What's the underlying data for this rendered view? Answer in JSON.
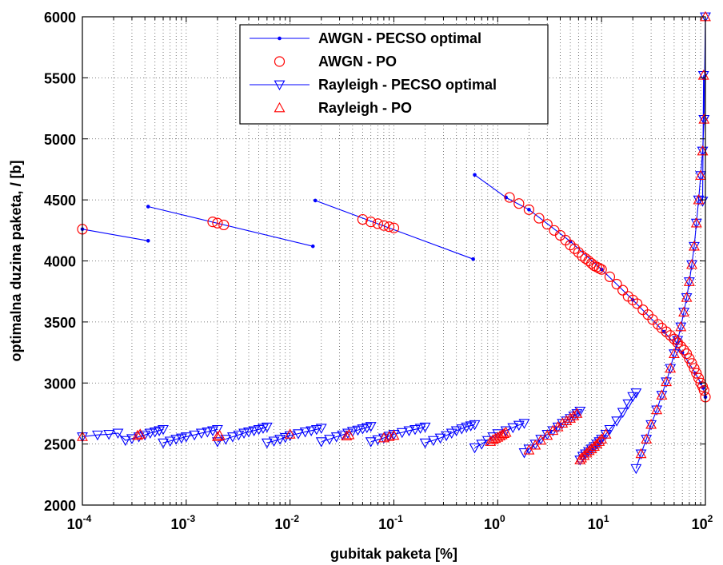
{
  "chart_data": {
    "type": "line",
    "xscale": "log",
    "xlim": [
      0.0001,
      100
    ],
    "ylim": [
      2000,
      6000
    ],
    "grid": true,
    "grid_style": "dotted",
    "legend_position": "top-center",
    "xlabel": "gubitak paketa [%]",
    "ylabel_parts": [
      "optimalna duzina paketa, ",
      "l",
      " [b]"
    ],
    "xticks": [
      {
        "base": "10",
        "exp": "-4",
        "value": 0.0001
      },
      {
        "base": "10",
        "exp": "-3",
        "value": 0.001
      },
      {
        "base": "10",
        "exp": "-2",
        "value": 0.01
      },
      {
        "base": "10",
        "exp": "-1",
        "value": 0.1
      },
      {
        "base": "10",
        "exp": "0",
        "value": 1
      },
      {
        "base": "10",
        "exp": "1",
        "value": 10
      },
      {
        "base": "10",
        "exp": "2",
        "value": 100
      }
    ],
    "yticks": [
      "2000",
      "2500",
      "3000",
      "3500",
      "4000",
      "4500",
      "5000",
      "5500",
      "6000"
    ],
    "colors": {
      "blue": "#0000ff",
      "red": "#ff0000"
    },
    "series": [
      {
        "name": "AWGN - PECSO optimal",
        "style": "blue-line-dot",
        "segments": [
          {
            "x": [
              0.0001,
              0.00043
            ],
            "y": [
              4260,
              4165
            ]
          },
          {
            "x": [
              0.00043,
              0.0166
            ],
            "y": [
              4445,
              4120
            ]
          },
          {
            "x": [
              0.0175,
              0.58
            ],
            "y": [
              4495,
              4015
            ]
          },
          {
            "x": [
              0.6,
              1.2
            ],
            "y": [
              4705,
              4520
            ]
          },
          {
            "x": [
              1.2,
              2,
              5,
              10,
              20,
              40,
              60,
              80,
              90,
              95,
              100
            ],
            "y": [
              4520,
              4420,
              4160,
              3930,
              3680,
              3420,
              3250,
              3080,
              3000,
              2960,
              2885
            ]
          }
        ]
      },
      {
        "name": "AWGN - PO",
        "style": "red-circle",
        "points": {
          "x": [
            0.0001,
            0.0018,
            0.002,
            0.0023,
            0.05,
            0.06,
            0.07,
            0.08,
            0.09,
            0.1,
            1.3,
            1.6,
            2,
            2.5,
            3,
            3.5,
            4,
            4.5,
            5,
            5.5,
            6,
            6.5,
            7,
            7.5,
            8,
            8.5,
            9,
            9.5,
            10,
            12,
            14,
            16,
            18,
            20,
            22,
            25,
            28,
            31,
            35,
            38,
            42,
            46,
            50,
            54,
            58,
            62,
            66,
            70,
            74,
            78,
            82,
            86,
            90,
            94,
            97,
            100
          ],
          "y": [
            4260,
            4320,
            4310,
            4295,
            4340,
            4320,
            4305,
            4290,
            4280,
            4270,
            4520,
            4470,
            4420,
            4350,
            4300,
            4250,
            4210,
            4170,
            4130,
            4100,
            4070,
            4040,
            4020,
            4000,
            3980,
            3960,
            3950,
            3940,
            3930,
            3870,
            3810,
            3760,
            3710,
            3680,
            3650,
            3600,
            3560,
            3520,
            3480,
            3450,
            3420,
            3390,
            3360,
            3330,
            3300,
            3270,
            3240,
            3200,
            3160,
            3120,
            3080,
            3040,
            3000,
            2970,
            2940,
            2885
          ]
        }
      },
      {
        "name": "Rayleigh - PECSO optimal",
        "style": "blue-line-triangle-down",
        "segments": [
          {
            "x": [
              0.0001,
              0.00014,
              0.00018,
              0.00022,
              0.00026,
              0.0003,
              0.00035,
              0.0004,
              0.00045,
              0.0005,
              0.00055,
              0.0006
            ],
            "y": [
              2560,
              2575,
              2580,
              2590,
              2530,
              2545,
              2560,
              2575,
              2590,
              2600,
              2610,
              2620
            ]
          },
          {
            "x": [
              0.0006,
              0.0007,
              0.0008,
              0.0009,
              0.001,
              0.0012,
              0.0014,
              0.0016,
              0.0018,
              0.002
            ],
            "y": [
              2510,
              2525,
              2540,
              2550,
              2560,
              2575,
              2590,
              2600,
              2610,
              2620
            ]
          },
          {
            "x": [
              0.002,
              0.0024,
              0.0028,
              0.0032,
              0.0036,
              0.004,
              0.0045,
              0.005,
              0.0055,
              0.006
            ],
            "y": [
              2520,
              2540,
              2560,
              2575,
              2590,
              2600,
              2610,
              2620,
              2630,
              2640
            ]
          },
          {
            "x": [
              0.006,
              0.007,
              0.008,
              0.009,
              0.01,
              0.012,
              0.014,
              0.016,
              0.018,
              0.02
            ],
            "y": [
              2510,
              2525,
              2540,
              2555,
              2570,
              2585,
              2600,
              2610,
              2620,
              2630
            ]
          },
          {
            "x": [
              0.02,
              0.024,
              0.028,
              0.032,
              0.036,
              0.04,
              0.045,
              0.05,
              0.055,
              0.06
            ],
            "y": [
              2520,
              2540,
              2560,
              2575,
              2590,
              2605,
              2615,
              2625,
              2635,
              2645
            ]
          },
          {
            "x": [
              0.06,
              0.07,
              0.08,
              0.09,
              0.1,
              0.12,
              0.14,
              0.16,
              0.18,
              0.2
            ],
            "y": [
              2520,
              2535,
              2550,
              2565,
              2580,
              2595,
              2610,
              2620,
              2630,
              2640
            ]
          },
          {
            "x": [
              0.2,
              0.24,
              0.28,
              0.32,
              0.36,
              0.4,
              0.45,
              0.5,
              0.55,
              0.6
            ],
            "y": [
              2510,
              2530,
              2550,
              2570,
              2590,
              2610,
              2625,
              2640,
              2650,
              2660
            ]
          },
          {
            "x": [
              0.6,
              0.7,
              0.8,
              0.9,
              1.0,
              1.2,
              1.4,
              1.6,
              1.8
            ],
            "y": [
              2470,
              2500,
              2530,
              2560,
              2585,
              2610,
              2635,
              2655,
              2670
            ]
          },
          {
            "x": [
              1.8,
              2,
              2.3,
              2.6,
              3,
              3.4,
              3.8,
              4.2,
              4.6,
              5,
              5.4,
              5.8,
              6.2
            ],
            "y": [
              2430,
              2460,
              2500,
              2540,
              2580,
              2610,
              2640,
              2670,
              2690,
              2710,
              2730,
              2750,
              2770
            ]
          },
          {
            "x": [
              6.2,
              6.6,
              7,
              7.5,
              8,
              8.5,
              9,
              9.5,
              10,
              11,
              12,
              14,
              16,
              18,
              20,
              21.5
            ],
            "y": [
              2370,
              2400,
              2420,
              2440,
              2460,
              2480,
              2500,
              2520,
              2540,
              2580,
              2620,
              2690,
              2760,
              2830,
              2890,
              2920
            ]
          },
          {
            "x": [
              21.5,
              24,
              27,
              30,
              34,
              38,
              42,
              46,
              50,
              54,
              58,
              62,
              66,
              70,
              74,
              78,
              82,
              86,
              90,
              94,
              97,
              100
            ],
            "y": [
              2300,
              2420,
              2540,
              2660,
              2780,
              2900,
              3010,
              3120,
              3240,
              3350,
              3460,
              3580,
              3700,
              3830,
              3970,
              4120,
              4310,
              4500,
              4700,
              4900,
              5160,
              6000
            ]
          },
          {
            "x": [
              94,
              96,
              97
            ],
            "y": [
              4490,
              5520,
              5160
            ]
          }
        ]
      },
      {
        "name": "Rayleigh - PO",
        "style": "red-triangle-up",
        "points": {
          "x": [
            0.0001,
            0.00034,
            0.00036,
            0.002,
            0.0021,
            0.01,
            0.035,
            0.037,
            0.08,
            0.09,
            0.1,
            0.85,
            0.9,
            0.95,
            1.0,
            1.05,
            1.1,
            1.15,
            1.2,
            2,
            2.3,
            2.6,
            3,
            3.4,
            3.8,
            4.2,
            4.6,
            5,
            5.4,
            5.8,
            6.2,
            6.4,
            6.8,
            7.2,
            7.6,
            8,
            8.5,
            9,
            9.5,
            10,
            11,
            24,
            27,
            30,
            34,
            38,
            42,
            46,
            50,
            54,
            58,
            62,
            66,
            70,
            74,
            78,
            82,
            86,
            90,
            94,
            96,
            97,
            100
          ],
          "y": [
            2560,
            2570,
            2580,
            2560,
            2570,
            2580,
            2565,
            2575,
            2550,
            2560,
            2570,
            2520,
            2535,
            2545,
            2555,
            2565,
            2575,
            2585,
            2595,
            2450,
            2490,
            2530,
            2570,
            2610,
            2640,
            2670,
            2690,
            2710,
            2730,
            2750,
            2370,
            2385,
            2405,
            2425,
            2445,
            2460,
            2480,
            2500,
            2520,
            2540,
            2580,
            2420,
            2540,
            2660,
            2780,
            2900,
            3010,
            3120,
            3240,
            3350,
            3460,
            3580,
            3700,
            3830,
            3970,
            4120,
            4310,
            4500,
            4700,
            4900,
            5520,
            5160,
            6000
          ]
        }
      }
    ],
    "legend": [
      {
        "label": "AWGN - PECSO optimal",
        "marker": "dot",
        "line": true,
        "color": "#0000ff"
      },
      {
        "label": "AWGN - PO",
        "marker": "circle",
        "line": false,
        "color": "#ff0000"
      },
      {
        "label": "Rayleigh - PECSO optimal",
        "marker": "triangle-down",
        "line": true,
        "color": "#0000ff"
      },
      {
        "label": "Rayleigh - PO",
        "marker": "triangle-up",
        "line": false,
        "color": "#ff0000"
      }
    ]
  }
}
